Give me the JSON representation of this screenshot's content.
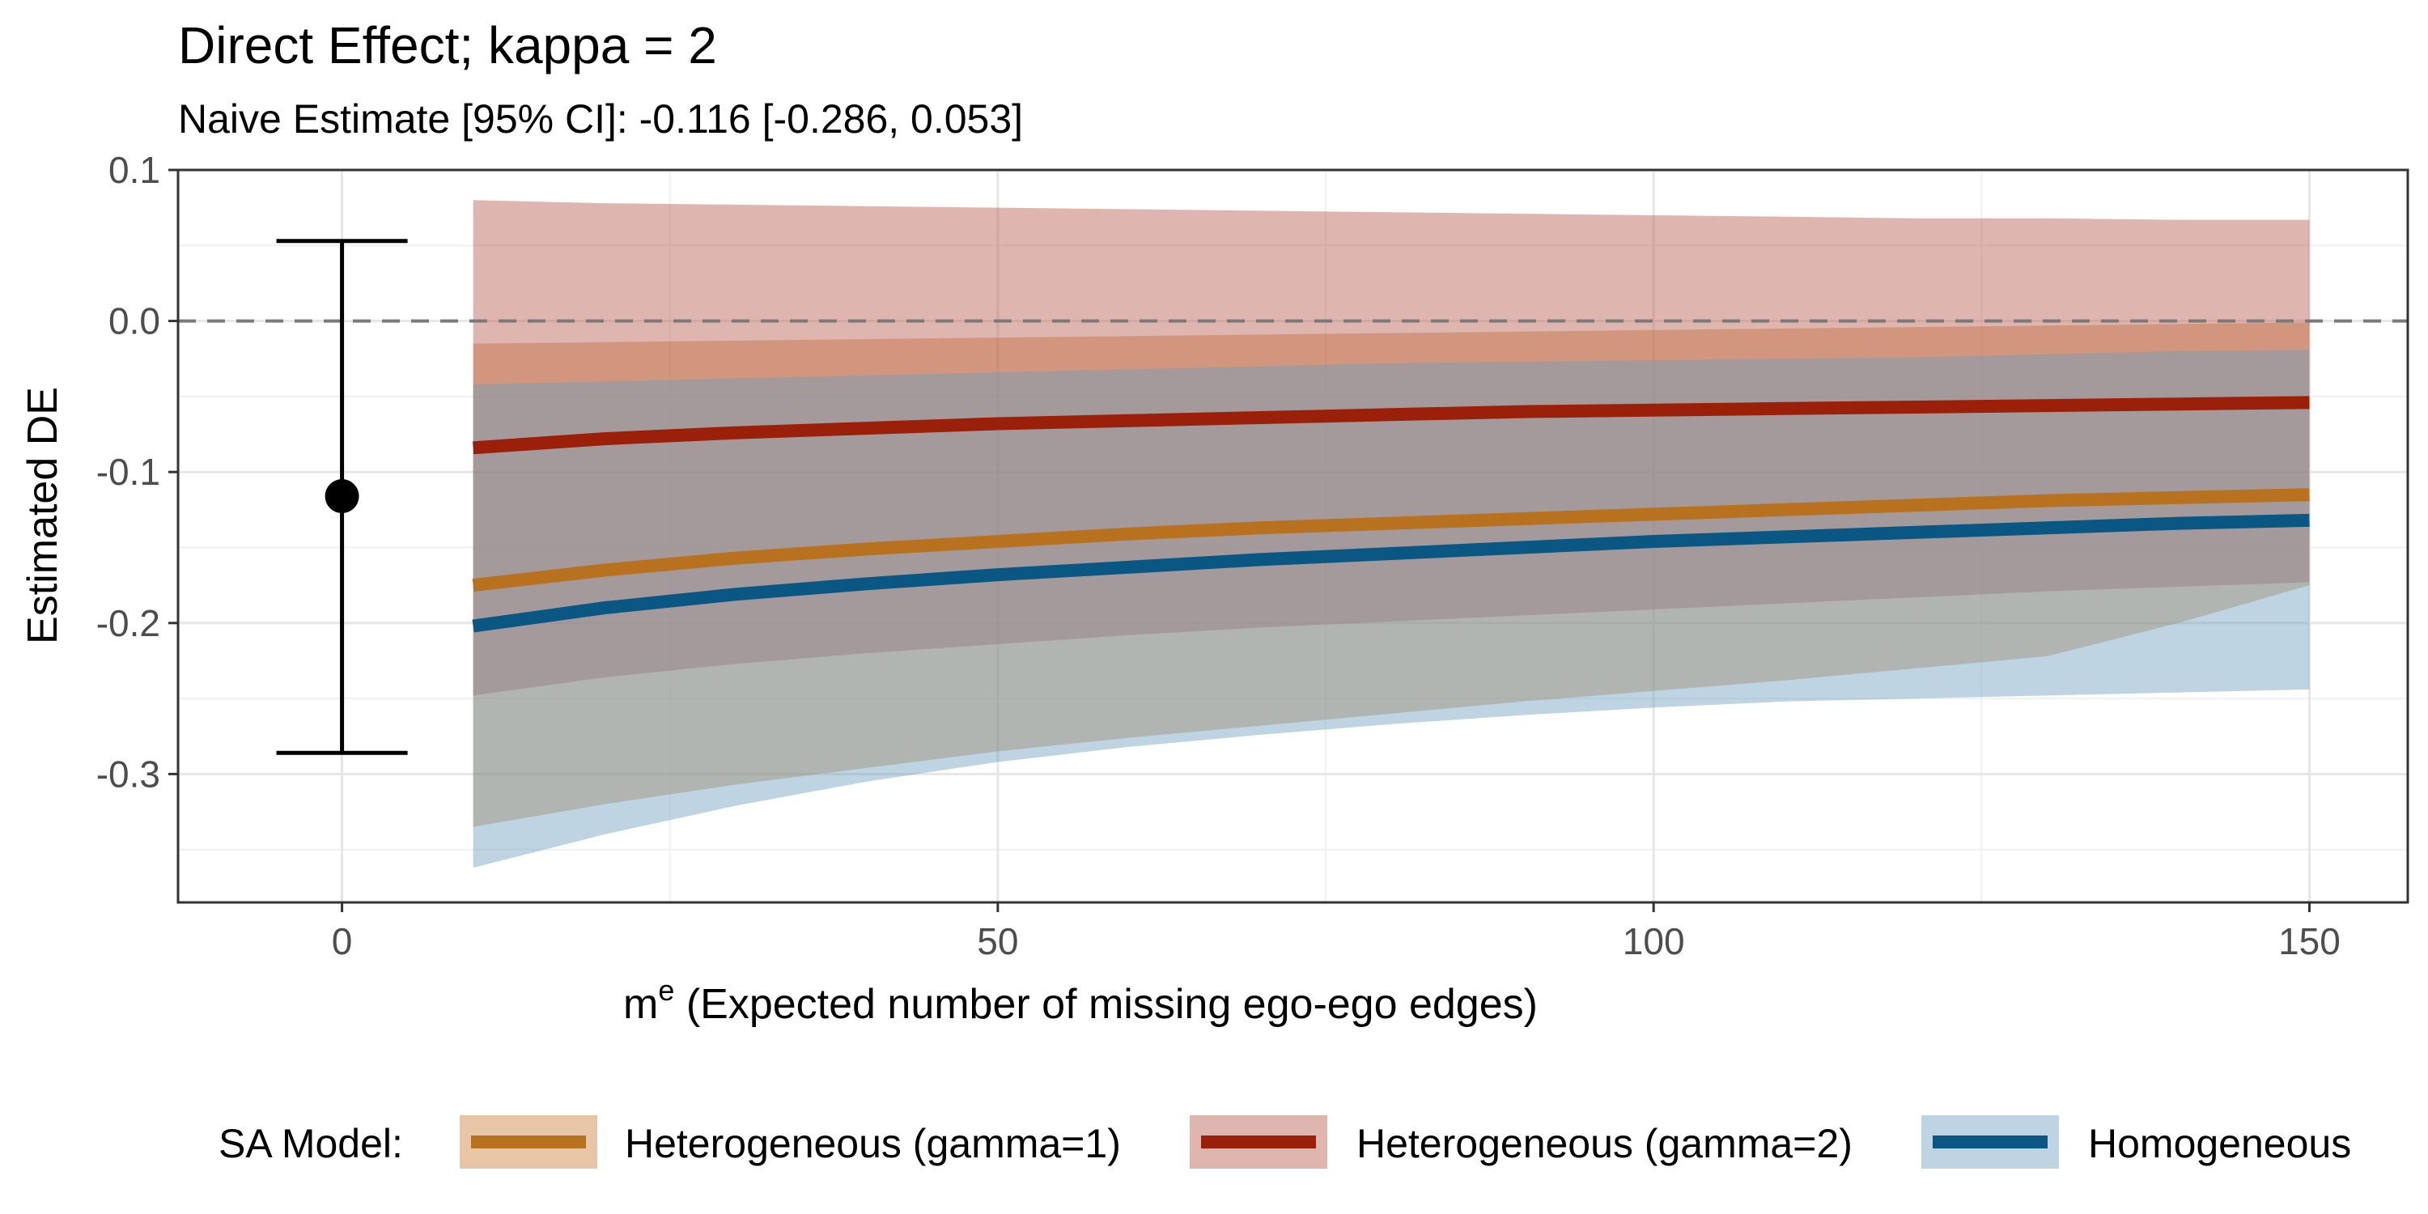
{
  "chart_data": {
    "type": "line",
    "title": "Direct Effect; kappa = 2",
    "subtitle": "Naive Estimate [95% CI]: -0.116 [-0.286, 0.053]",
    "xlabel_main": "m",
    "xlabel_sup": "e",
    "xlabel_rest": " (Expected number of missing ego-ego edges)",
    "ylabel": "Estimated DE",
    "xlim": [
      -12.5,
      157.5
    ],
    "ylim": [
      -0.385,
      0.1
    ],
    "x_ticks": [
      0,
      50,
      100,
      150
    ],
    "x_tick_labels": [
      "0",
      "50",
      "100",
      "150"
    ],
    "y_ticks": [
      0.1,
      0.0,
      -0.1,
      -0.2,
      -0.3
    ],
    "y_tick_labels": [
      "0.1",
      "0.0",
      "-0.1",
      "-0.2",
      "-0.3"
    ],
    "reference_line_y": 0.0,
    "naive_estimate": {
      "x": 0,
      "estimate": -0.116,
      "lower": -0.286,
      "upper": 0.053
    },
    "x": [
      10,
      20,
      30,
      40,
      50,
      60,
      70,
      80,
      90,
      100,
      110,
      120,
      130,
      140,
      150
    ],
    "series": [
      {
        "name": "Heterogeneous (gamma=1)",
        "color": "#b8711f",
        "ribbon_color": "#c9813f",
        "values": [
          -0.175,
          -0.165,
          -0.157,
          -0.151,
          -0.146,
          -0.141,
          -0.137,
          -0.134,
          -0.131,
          -0.128,
          -0.125,
          -0.122,
          -0.119,
          -0.117,
          -0.115
        ],
        "lower": [
          -0.335,
          -0.32,
          -0.307,
          -0.296,
          -0.285,
          -0.276,
          -0.268,
          -0.26,
          -0.252,
          -0.245,
          -0.238,
          -0.23,
          -0.222,
          -0.2,
          -0.175
        ],
        "upper": [
          -0.015,
          -0.014,
          -0.013,
          -0.012,
          -0.011,
          -0.01,
          -0.009,
          -0.008,
          -0.007,
          -0.006,
          -0.005,
          -0.004,
          -0.003,
          -0.002,
          -0.001
        ]
      },
      {
        "name": "Heterogeneous (gamma=2)",
        "color": "#9b2009",
        "ribbon_color": "#b85b4e",
        "values": [
          -0.084,
          -0.078,
          -0.074,
          -0.071,
          -0.068,
          -0.066,
          -0.064,
          -0.062,
          -0.06,
          -0.059,
          -0.058,
          -0.057,
          -0.056,
          -0.055,
          -0.054
        ],
        "lower": [
          -0.248,
          -0.236,
          -0.227,
          -0.22,
          -0.214,
          -0.208,
          -0.203,
          -0.199,
          -0.195,
          -0.191,
          -0.187,
          -0.183,
          -0.179,
          -0.176,
          -0.173
        ],
        "upper": [
          0.08,
          0.078,
          0.077,
          0.076,
          0.075,
          0.074,
          0.073,
          0.072,
          0.071,
          0.07,
          0.069,
          0.068,
          0.068,
          0.067,
          0.067
        ]
      },
      {
        "name": "Homogeneous",
        "color": "#0b5783",
        "ribbon_color": "#6f9fbe",
        "values": [
          -0.202,
          -0.19,
          -0.181,
          -0.174,
          -0.168,
          -0.163,
          -0.158,
          -0.154,
          -0.15,
          -0.146,
          -0.143,
          -0.14,
          -0.137,
          -0.134,
          -0.132
        ],
        "lower": [
          -0.362,
          -0.34,
          -0.321,
          -0.305,
          -0.292,
          -0.282,
          -0.274,
          -0.267,
          -0.261,
          -0.256,
          -0.252,
          -0.25,
          -0.248,
          -0.246,
          -0.244
        ],
        "upper": [
          -0.042,
          -0.04,
          -0.038,
          -0.036,
          -0.034,
          -0.032,
          -0.03,
          -0.028,
          -0.027,
          -0.026,
          -0.025,
          -0.024,
          -0.022,
          -0.02,
          -0.019
        ]
      }
    ],
    "legend": {
      "title": "SA Model:",
      "placement": "bottom",
      "entries": [
        "Heterogeneous (gamma=1)",
        "Heterogeneous (gamma=2)",
        "Homogeneous"
      ]
    }
  }
}
